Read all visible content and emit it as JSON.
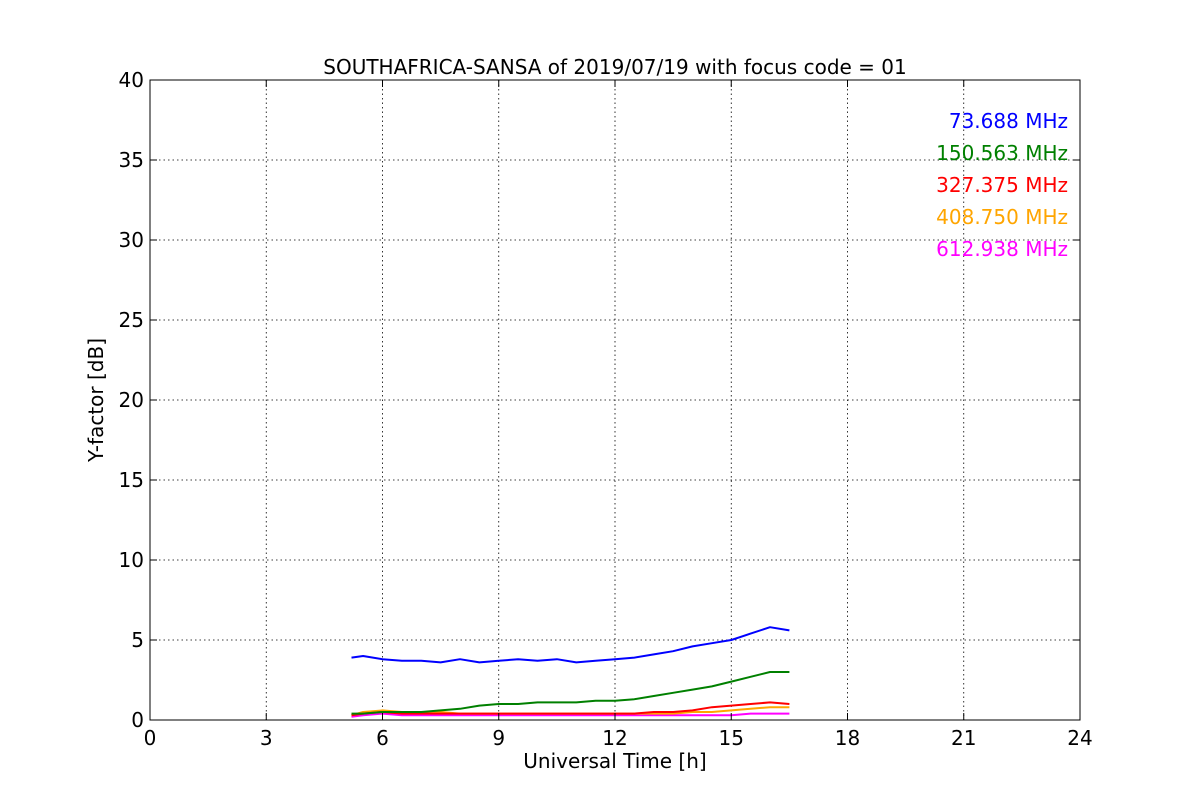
{
  "chart_data": {
    "type": "line",
    "title": "SOUTHAFRICA-SANSA of 2019/07/19 with focus code = 01",
    "xlabel": "Universal Time [h]",
    "ylabel": "Y-factor [dB]",
    "xlim": [
      0,
      24
    ],
    "ylim": [
      0,
      40
    ],
    "xticks": [
      0,
      3,
      6,
      9,
      12,
      15,
      18,
      21,
      24
    ],
    "yticks": [
      0,
      5,
      10,
      15,
      20,
      25,
      30,
      35,
      40
    ],
    "grid": true,
    "legend_position": "top-right",
    "series": [
      {
        "name": "73.688 MHz",
        "color": "#0000ff",
        "x": [
          5.2,
          5.5,
          6.0,
          6.5,
          7.0,
          7.5,
          8.0,
          8.5,
          9.0,
          9.5,
          10.0,
          10.5,
          11.0,
          11.5,
          12.0,
          12.5,
          13.0,
          13.5,
          14.0,
          14.5,
          15.0,
          15.5,
          16.0,
          16.5
        ],
        "y": [
          3.9,
          4.0,
          3.8,
          3.7,
          3.7,
          3.6,
          3.8,
          3.6,
          3.7,
          3.8,
          3.7,
          3.8,
          3.6,
          3.7,
          3.8,
          3.9,
          4.1,
          4.3,
          4.6,
          4.8,
          5.0,
          5.4,
          5.8,
          5.6
        ]
      },
      {
        "name": "150.563 MHz",
        "color": "#008000",
        "x": [
          5.2,
          5.5,
          6.0,
          6.5,
          7.0,
          7.5,
          8.0,
          8.5,
          9.0,
          9.5,
          10.0,
          10.5,
          11.0,
          11.5,
          12.0,
          12.5,
          13.0,
          13.5,
          14.0,
          14.5,
          15.0,
          15.5,
          16.0,
          16.5
        ],
        "y": [
          0.4,
          0.4,
          0.5,
          0.5,
          0.5,
          0.6,
          0.7,
          0.9,
          1.0,
          1.0,
          1.1,
          1.1,
          1.1,
          1.2,
          1.2,
          1.3,
          1.5,
          1.7,
          1.9,
          2.1,
          2.4,
          2.7,
          3.0,
          3.0
        ]
      },
      {
        "name": "327.375 MHz",
        "color": "#ff0000",
        "x": [
          5.2,
          5.5,
          6.0,
          6.5,
          7.0,
          7.5,
          8.0,
          8.5,
          9.0,
          9.5,
          10.0,
          10.5,
          11.0,
          11.5,
          12.0,
          12.5,
          13.0,
          13.5,
          14.0,
          14.5,
          15.0,
          15.5,
          16.0,
          16.5
        ],
        "y": [
          0.3,
          0.4,
          0.5,
          0.4,
          0.4,
          0.4,
          0.4,
          0.4,
          0.4,
          0.4,
          0.4,
          0.4,
          0.4,
          0.4,
          0.4,
          0.4,
          0.5,
          0.5,
          0.6,
          0.8,
          0.9,
          1.0,
          1.1,
          1.0
        ]
      },
      {
        "name": "408.750 MHz",
        "color": "#ffa500",
        "x": [
          5.2,
          5.5,
          6.0,
          6.5,
          7.0,
          7.5,
          8.0,
          8.5,
          9.0,
          9.5,
          10.0,
          10.5,
          11.0,
          11.5,
          12.0,
          12.5,
          13.0,
          13.5,
          14.0,
          14.5,
          15.0,
          15.5,
          16.0,
          16.5
        ],
        "y": [
          0.3,
          0.5,
          0.6,
          0.5,
          0.5,
          0.5,
          0.4,
          0.4,
          0.4,
          0.4,
          0.4,
          0.4,
          0.4,
          0.4,
          0.4,
          0.4,
          0.4,
          0.4,
          0.5,
          0.5,
          0.6,
          0.7,
          0.8,
          0.8
        ]
      },
      {
        "name": "612.938 MHz",
        "color": "#ff00ff",
        "x": [
          5.2,
          5.5,
          6.0,
          6.5,
          7.0,
          7.5,
          8.0,
          8.5,
          9.0,
          9.5,
          10.0,
          10.5,
          11.0,
          11.5,
          12.0,
          12.5,
          13.0,
          13.5,
          14.0,
          14.5,
          15.0,
          15.5,
          16.0,
          16.5
        ],
        "y": [
          0.2,
          0.3,
          0.4,
          0.3,
          0.3,
          0.3,
          0.3,
          0.3,
          0.3,
          0.3,
          0.3,
          0.3,
          0.3,
          0.3,
          0.3,
          0.3,
          0.3,
          0.3,
          0.3,
          0.3,
          0.3,
          0.4,
          0.4,
          0.4
        ]
      }
    ]
  }
}
